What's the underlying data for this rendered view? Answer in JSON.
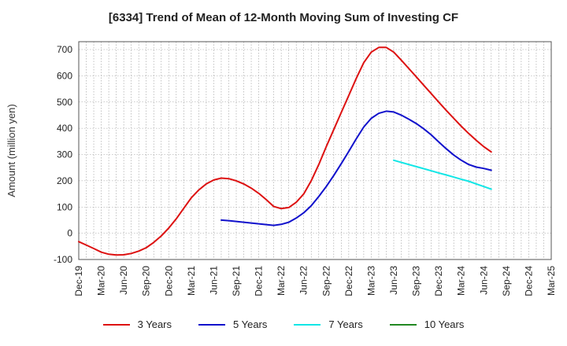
{
  "chart_data": {
    "type": "line",
    "title": "[6334]  Trend of Mean of 12-Month Moving Sum of Investing CF",
    "xlabel": "",
    "ylabel": "Amount (million yen)",
    "ylim": [
      -100,
      730
    ],
    "yticks": [
      -100,
      0,
      100,
      200,
      300,
      400,
      500,
      600,
      700
    ],
    "x_range_months": [
      0,
      63
    ],
    "xtick_labels": [
      "Dec-19",
      "Mar-20",
      "Jun-20",
      "Sep-20",
      "Dec-20",
      "Mar-21",
      "Jun-21",
      "Sep-21",
      "Dec-21",
      "Mar-22",
      "Jun-22",
      "Sep-22",
      "Dec-22",
      "Mar-23",
      "Jun-23",
      "Sep-23",
      "Dec-23",
      "Mar-24",
      "Jun-24",
      "Sep-24",
      "Dec-24",
      "Mar-25"
    ],
    "grid": true,
    "legend_position": "bottom",
    "series": [
      {
        "name": "3 Years",
        "color": "#dd1111",
        "x": [
          0,
          1,
          2,
          3,
          4,
          5,
          6,
          7,
          8,
          9,
          10,
          11,
          12,
          13,
          14,
          15,
          16,
          17,
          18,
          19,
          20,
          21,
          22,
          23,
          24,
          25,
          26,
          27,
          28,
          29,
          30,
          31,
          32,
          33,
          34,
          35,
          36,
          37,
          38,
          39,
          40,
          41,
          42,
          43,
          44,
          45,
          46,
          47,
          48,
          49,
          50,
          51,
          52,
          53,
          54,
          55
        ],
        "values": [
          -32,
          -45,
          -58,
          -72,
          -80,
          -83,
          -82,
          -77,
          -68,
          -55,
          -35,
          -10,
          20,
          55,
          95,
          135,
          165,
          188,
          203,
          210,
          208,
          200,
          188,
          172,
          152,
          128,
          102,
          94,
          98,
          118,
          150,
          200,
          262,
          330,
          395,
          460,
          525,
          590,
          650,
          690,
          708,
          708,
          690,
          660,
          628,
          596,
          564,
          532,
          500,
          468,
          438,
          408,
          380,
          354,
          330,
          310
        ]
      },
      {
        "name": "5 Years",
        "color": "#1111cc",
        "x": [
          19,
          20,
          21,
          22,
          23,
          24,
          25,
          26,
          27,
          28,
          29,
          30,
          31,
          32,
          33,
          34,
          35,
          36,
          37,
          38,
          39,
          40,
          41,
          42,
          43,
          44,
          45,
          46,
          47,
          48,
          49,
          50,
          51,
          52,
          53,
          54,
          55
        ],
        "values": [
          50,
          48,
          45,
          42,
          39,
          36,
          33,
          30,
          34,
          42,
          58,
          78,
          105,
          140,
          178,
          220,
          265,
          312,
          360,
          405,
          438,
          457,
          465,
          462,
          450,
          435,
          418,
          398,
          375,
          348,
          322,
          298,
          278,
          262,
          252,
          247,
          240
        ]
      },
      {
        "name": "7 Years",
        "color": "#11e6e6",
        "x": [
          42,
          43,
          44,
          45,
          46,
          47,
          48,
          49,
          50,
          51,
          52,
          53,
          54,
          55
        ],
        "values": [
          278,
          270,
          262,
          254,
          246,
          238,
          230,
          222,
          214,
          206,
          198,
          188,
          178,
          168
        ]
      },
      {
        "name": "10 Years",
        "color": "#228822",
        "x": [],
        "values": []
      }
    ]
  }
}
